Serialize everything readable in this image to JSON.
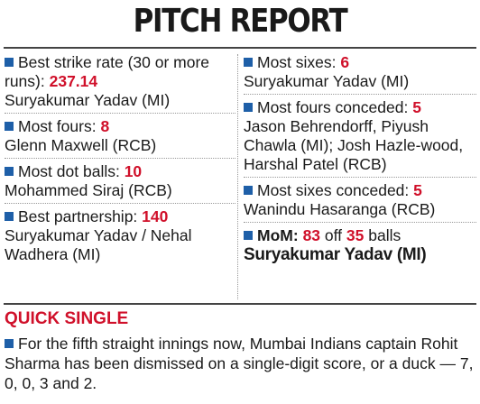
{
  "title": "PITCH REPORT",
  "accent_color": "#d0102a",
  "bullet_color": "#1e5fa8",
  "left": [
    {
      "label": "Best strike rate (30 or more runs):",
      "value": "237.14",
      "name": "Suryakumar Yadav (MI)"
    },
    {
      "label": "Most fours:",
      "value": "8",
      "name": "Glenn Maxwell (RCB)"
    },
    {
      "label": "Most dot balls:",
      "value": "10",
      "name": "Mohammed Siraj (RCB)"
    },
    {
      "label": "Best partnership:",
      "value": "140",
      "name": "Suryakumar Yadav / Nehal Wadhera (MI)"
    }
  ],
  "right": [
    {
      "label": "Most sixes:",
      "value": "6",
      "name": "Suryakumar Yadav (MI)"
    },
    {
      "label": "Most fours conceded:",
      "value": "5",
      "name": "Jason Behrendorff, Piyush Chawla (MI); Josh Hazle-wood, Harshal Patel (RCB)"
    },
    {
      "label": "Most sixes conceded:",
      "value": "5",
      "name": "Wanindu Hasaranga (RCB)"
    }
  ],
  "mom": {
    "label": "MoM:",
    "runs": "83",
    "off": "off",
    "balls": "35",
    "balls_word": "balls",
    "player": "Suryakumar Yadav (MI)"
  },
  "quick_single": {
    "heading": "QUICK SINGLE",
    "text": "For the fifth straight innings now, Mumbai Indians captain Rohit Sharma has been dismissed on a single-digit score, or a duck — 7, 0, 0, 3 and 2."
  }
}
